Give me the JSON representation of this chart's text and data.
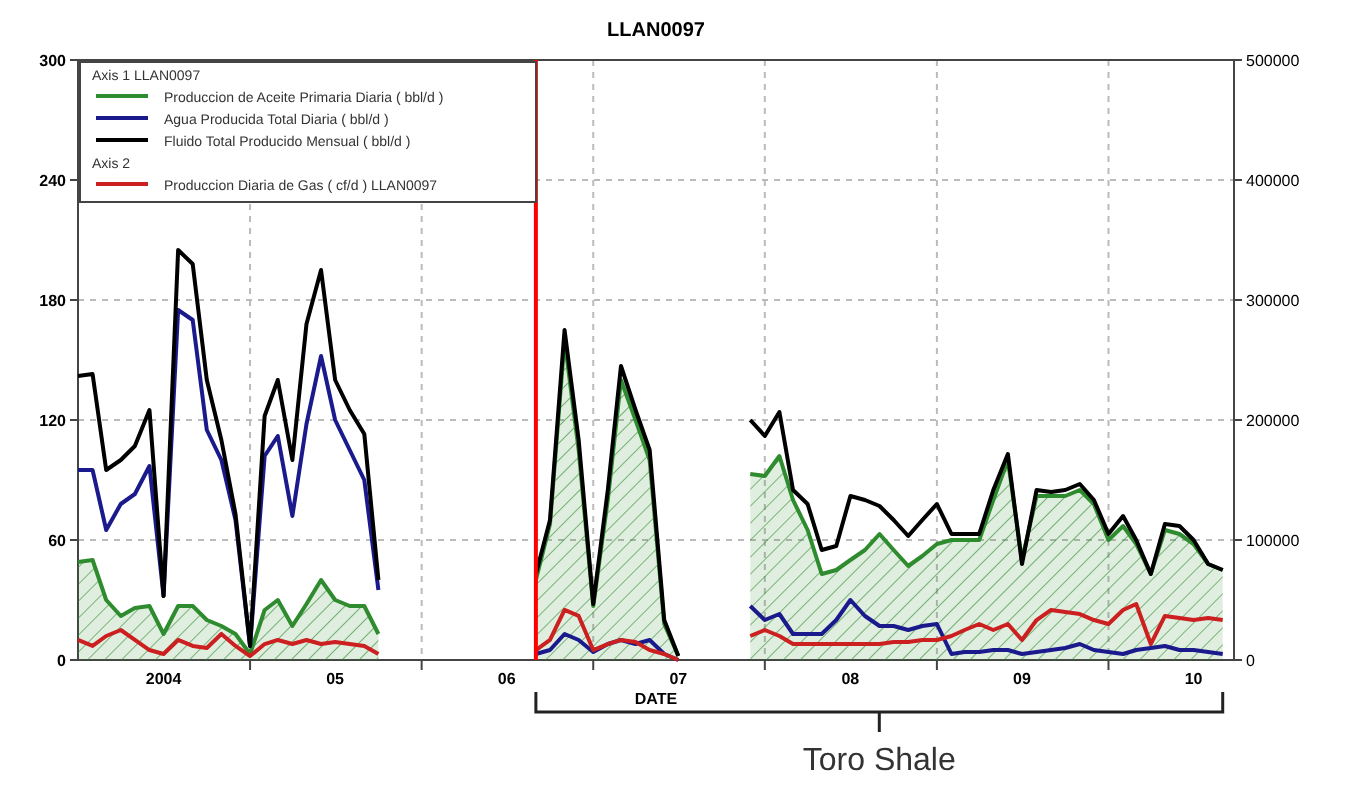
{
  "chart_data": {
    "type": "line",
    "title": "LLAN0097",
    "xlabel": "DATE",
    "legend_title": "Axis 1  LLAN0097",
    "annotations": [
      "Axis 2",
      "Toro Shale"
    ],
    "x": [
      "2004-01",
      "2004-02",
      "2004-03",
      "2004-04",
      "2004-05",
      "2004-06",
      "2004-07",
      "2004-08",
      "2004-09",
      "2004-10",
      "2004-11",
      "2004-12",
      "2005-01",
      "2005-02",
      "2005-03",
      "2005-04",
      "2005-05",
      "2005-06",
      "2005-07",
      "2005-08",
      "2005-09",
      "2005-10",
      "2005-11",
      "2005-12",
      "2006-01",
      "2006-02",
      "2006-03",
      "2006-04",
      "2006-05",
      "2006-06",
      "2006-07",
      "2006-08",
      "2006-09",
      "2006-10",
      "2006-11",
      "2006-12",
      "2007-01",
      "2007-02",
      "2007-03",
      "2007-04",
      "2007-05",
      "2007-06",
      "2007-07",
      "2007-08",
      "2007-09",
      "2007-10",
      "2007-11",
      "2007-12",
      "2008-01",
      "2008-02",
      "2008-03",
      "2008-04",
      "2008-05",
      "2008-06",
      "2008-07",
      "2008-08",
      "2008-09",
      "2008-10",
      "2008-11",
      "2008-12",
      "2009-01",
      "2009-02",
      "2009-03",
      "2009-04",
      "2009-05",
      "2009-06",
      "2009-07",
      "2009-08",
      "2009-09",
      "2009-10",
      "2009-11",
      "2009-12",
      "2010-01",
      "2010-02",
      "2010-03",
      "2010-04",
      "2010-05",
      "2010-06",
      "2010-07",
      "2010-08",
      "2010-09"
    ],
    "series": [
      {
        "name": "Produccion de Aceite Primaria Diaria ( bbl/d )",
        "type": "area",
        "color": "#2e8b2e",
        "values": [
          49,
          50,
          30,
          22,
          26,
          27,
          13,
          27,
          27,
          20,
          17,
          13,
          3,
          25,
          30,
          17,
          28,
          40,
          30,
          27,
          27,
          13,
          null,
          null,
          null,
          null,
          null,
          null,
          null,
          null,
          null,
          null,
          40,
          68,
          160,
          105,
          27,
          80,
          140,
          120,
          100,
          18,
          2,
          null,
          null,
          null,
          null,
          93,
          92,
          102,
          80,
          65,
          43,
          45,
          50,
          55,
          63,
          55,
          47,
          52,
          58,
          60,
          60,
          60,
          80,
          100,
          50,
          82,
          82,
          82,
          85,
          78,
          60,
          67,
          58,
          43,
          65,
          63,
          58,
          48,
          45
        ]
      },
      {
        "name": "Agua Producida Total Diaria ( bbl/d )",
        "color": "#1a1a8c",
        "values": [
          95,
          95,
          65,
          78,
          83,
          97,
          32,
          175,
          170,
          115,
          100,
          70,
          7,
          102,
          112,
          72,
          118,
          152,
          120,
          105,
          90,
          35,
          null,
          null,
          null,
          null,
          null,
          null,
          null,
          null,
          null,
          null,
          3,
          5,
          13,
          10,
          4,
          8,
          10,
          8,
          10,
          3,
          0,
          null,
          null,
          null,
          null,
          27,
          20,
          23,
          13,
          13,
          13,
          20,
          30,
          22,
          17,
          17,
          15,
          17,
          18,
          3,
          4,
          4,
          5,
          5,
          3,
          4,
          5,
          6,
          8,
          5,
          4,
          3,
          5,
          6,
          7,
          5,
          5,
          4,
          3
        ]
      },
      {
        "name": "Fluido Total Producido Mensual ( bbl/d )",
        "color": "#000000",
        "values": [
          142,
          143,
          95,
          100,
          107,
          125,
          32,
          205,
          198,
          140,
          110,
          73,
          7,
          122,
          140,
          100,
          168,
          195,
          140,
          125,
          113,
          40,
          null,
          null,
          null,
          null,
          null,
          null,
          null,
          null,
          null,
          null,
          43,
          70,
          165,
          110,
          28,
          85,
          147,
          125,
          105,
          20,
          2,
          null,
          null,
          null,
          null,
          120,
          112,
          124,
          85,
          78,
          55,
          57,
          82,
          80,
          77,
          70,
          62,
          70,
          78,
          63,
          63,
          63,
          85,
          103,
          48,
          85,
          84,
          85,
          88,
          80,
          63,
          72,
          60,
          43,
          68,
          67,
          60,
          48,
          45
        ]
      },
      {
        "name": "Produccion Diaria de Gas ( cf/d ) LLAN0097",
        "color": "#cc2020",
        "axis": "y2",
        "values": [
          16700,
          11700,
          20000,
          25000,
          16700,
          8300,
          5000,
          16700,
          11700,
          10000,
          21700,
          11700,
          3300,
          13300,
          16700,
          13300,
          16700,
          13300,
          15000,
          13300,
          11700,
          5000,
          null,
          null,
          null,
          null,
          null,
          null,
          null,
          null,
          null,
          null,
          8300,
          16700,
          41700,
          36700,
          8300,
          13300,
          16700,
          15000,
          8300,
          5000,
          0,
          null,
          null,
          null,
          null,
          20000,
          25000,
          20000,
          13300,
          13300,
          13300,
          13300,
          13300,
          13300,
          13300,
          15000,
          15000,
          16700,
          16700,
          20000,
          25000,
          30000,
          25000,
          30000,
          16700,
          33300,
          41700,
          40000,
          38300,
          33300,
          30000,
          41700,
          46700,
          13300,
          36700,
          35000,
          33300,
          35000,
          33300
        ]
      }
    ],
    "xlim": [
      "2004-01",
      "2010-09-25"
    ],
    "xticks": [
      {
        "value": "2004-07",
        "label": "2004"
      },
      {
        "value": "2005",
        "label": null
      },
      {
        "value": "2005-07",
        "label": "05"
      },
      {
        "value": "2006",
        "label": null
      },
      {
        "value": "2006-07",
        "label": "06"
      },
      {
        "value": "2007",
        "label": null
      },
      {
        "value": "2007-07",
        "label": "07"
      },
      {
        "value": "2008",
        "label": null
      },
      {
        "value": "2008-07",
        "label": "08"
      },
      {
        "value": "2009",
        "label": null
      },
      {
        "value": "2009-07",
        "label": "09"
      },
      {
        "value": "2010",
        "label": null
      },
      {
        "value": "2010-07",
        "label": "10"
      }
    ],
    "ylim": [
      0,
      300
    ],
    "yticks": [
      0,
      60,
      120,
      180,
      240,
      300
    ],
    "y2lim": [
      0,
      500000
    ],
    "y2ticks": [
      0,
      100000,
      200000,
      300000,
      400000,
      500000
    ],
    "ref_lines": [
      {
        "axis": "x",
        "value": "2006-09",
        "color": "#ff0000"
      }
    ],
    "grid": true,
    "legend": "top left"
  }
}
